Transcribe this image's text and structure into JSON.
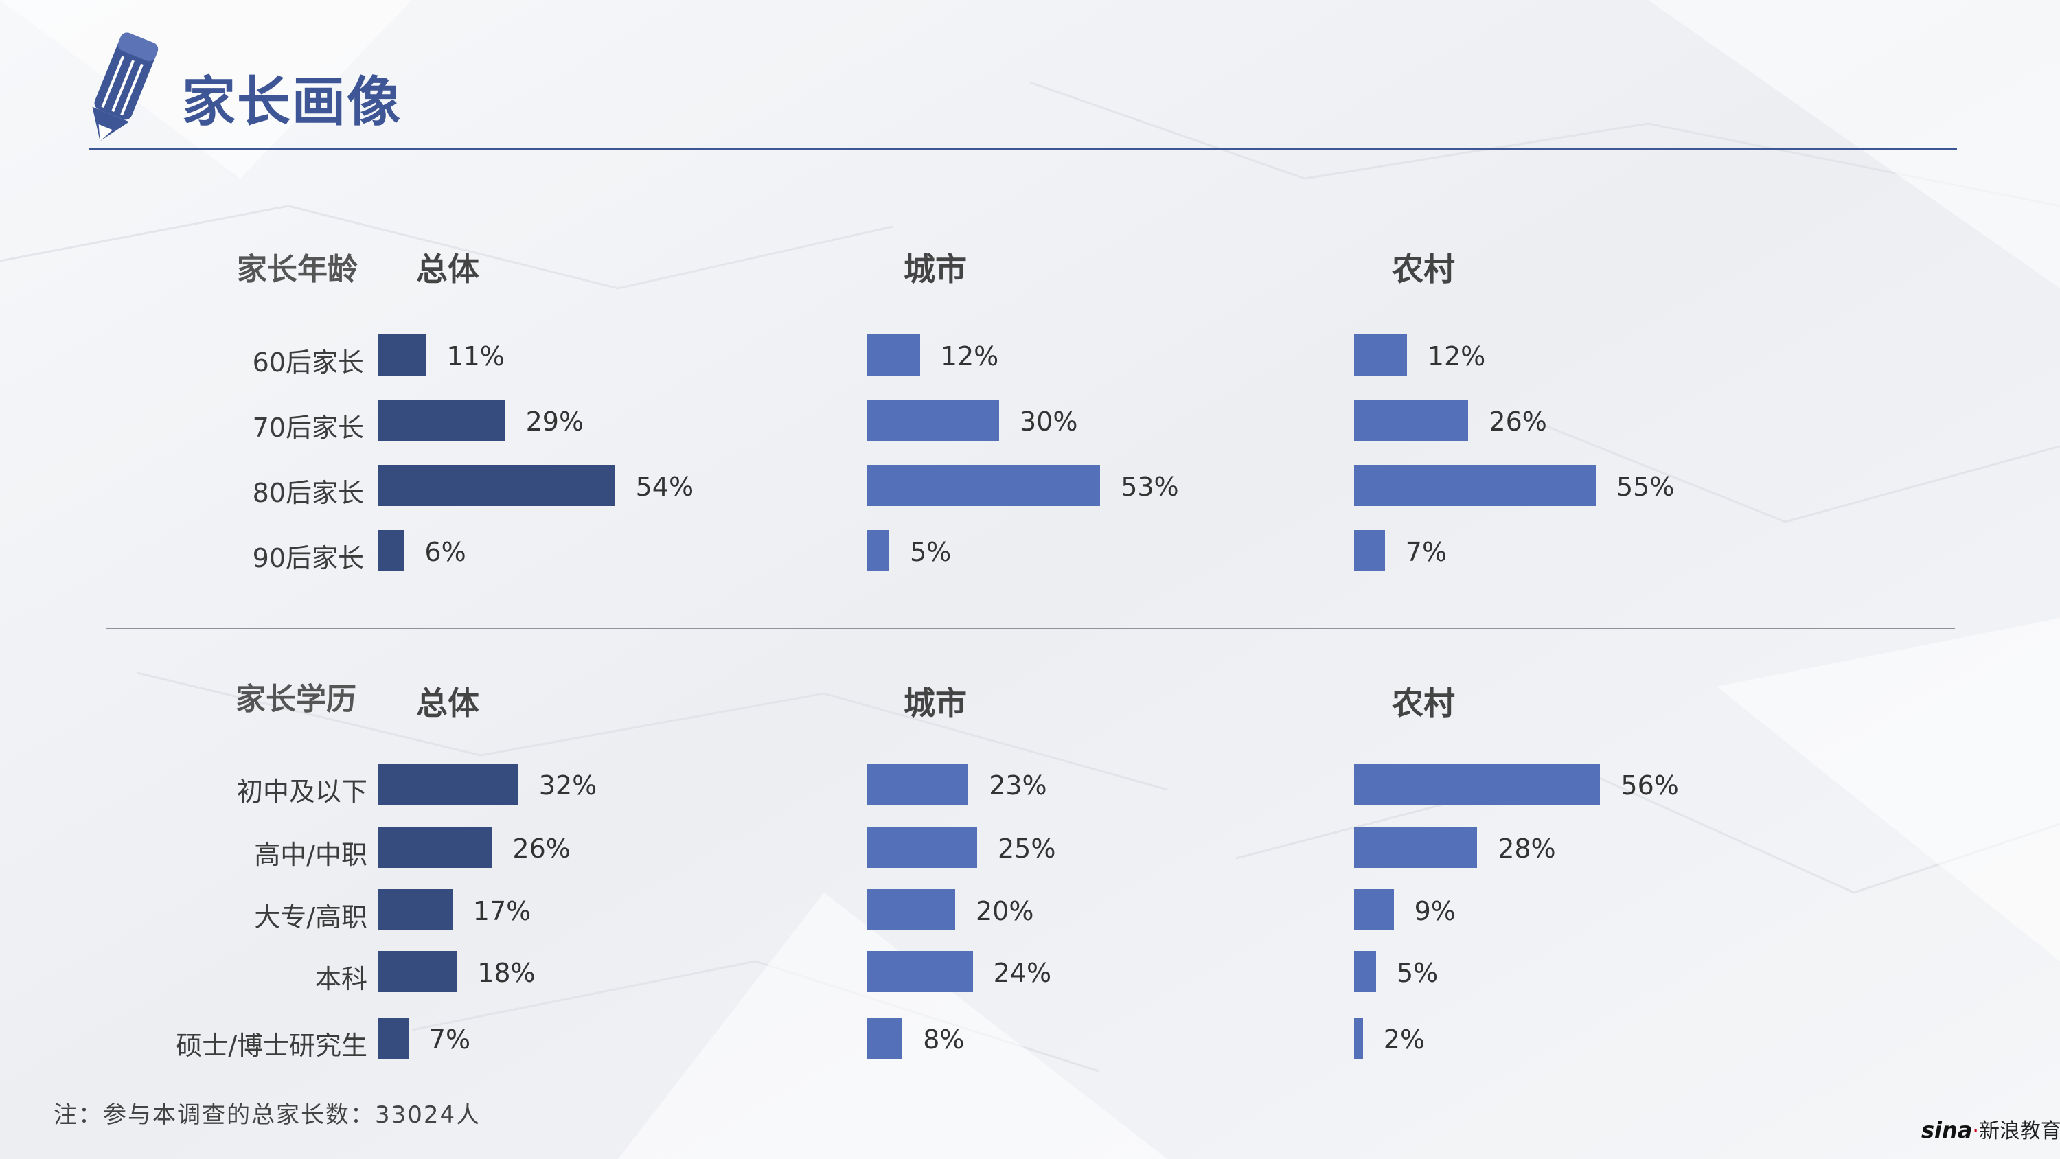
{
  "page": {
    "title": "家长画像"
  },
  "footer": {
    "note": "注：参与本调查的总家长数：33024人",
    "logo_brand": "sina",
    "logo_text": "新浪教育"
  },
  "chart_data": [
    {
      "type": "bar",
      "orientation": "horizontal",
      "title": "家长年龄",
      "categories": [
        "60后家长",
        "70后家长",
        "80后家长",
        "90后家长"
      ],
      "series": [
        {
          "name": "总体",
          "values": [
            11,
            29,
            54,
            6
          ],
          "labels": [
            "11%",
            "29%",
            "54%",
            "6%"
          ],
          "color": "#374c7e"
        },
        {
          "name": "城市",
          "values": [
            12,
            30,
            53,
            5
          ],
          "labels": [
            "12%",
            "30%",
            "53%",
            "5%"
          ],
          "color": "#5470b9"
        },
        {
          "name": "农村",
          "values": [
            12,
            26,
            55,
            7
          ],
          "labels": [
            "12%",
            "26%",
            "55%",
            "7%"
          ],
          "color": "#5470b9"
        }
      ],
      "unit": "%"
    },
    {
      "type": "bar",
      "orientation": "horizontal",
      "title": "家长学历",
      "categories": [
        "初中及以下",
        "高中/中职",
        "大专/高职",
        "本科",
        "硕士/博士研究生"
      ],
      "series": [
        {
          "name": "总体",
          "values": [
            32,
            26,
            17,
            18,
            7
          ],
          "labels": [
            "32%",
            "26%",
            "17%",
            "18%",
            "7%"
          ],
          "color": "#374c7e"
        },
        {
          "name": "城市",
          "values": [
            23,
            25,
            20,
            24,
            8
          ],
          "labels": [
            "23%",
            "25%",
            "20%",
            "24%",
            "8%"
          ],
          "color": "#5470b9"
        },
        {
          "name": "农村",
          "values": [
            56,
            28,
            9,
            5,
            2
          ],
          "labels": [
            "56%",
            "28%",
            "9%",
            "5%",
            "2%"
          ],
          "color": "#5470b9"
        }
      ],
      "unit": "%"
    }
  ]
}
